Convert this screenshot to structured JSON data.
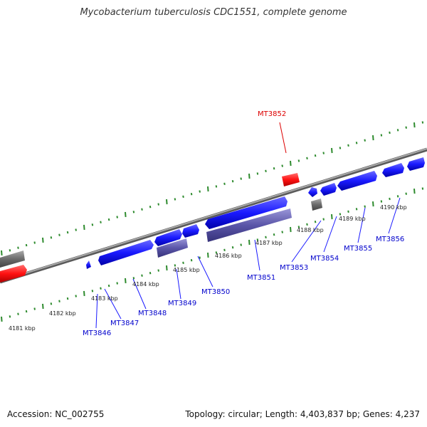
{
  "title": "Mycobacterium tuberculosis CDC1551, complete genome",
  "footer": {
    "accession": "Accession: NC_002755",
    "summary": "Topology: circular; Length: 4,403,837 bp; Genes: 4,237"
  },
  "colors": {
    "forward_gene": "#1a1aff",
    "reverse_gene": "#5a55a8",
    "highlight_gene": "#ff1111",
    "other_gene": "#6b6b6b",
    "backbone": "#808080",
    "ticks": "#2e8b2e",
    "gene_label": "#0000cc",
    "highlight_label": "#dd0000"
  },
  "kbp_labels": [
    "4181 kbp",
    "4182 kbp",
    "4183 kbp",
    "4184 kbp",
    "4185 kbp",
    "4186 kbp",
    "4187 kbp",
    "4188 kbp",
    "4189 kbp",
    "4190 kbp"
  ],
  "gene_labels": [
    "MT3846",
    "MT3847",
    "MT3848",
    "MT3849",
    "MT3850",
    "MT3851",
    "MT3853",
    "MT3854",
    "MT3855",
    "MT3856"
  ],
  "highlight_label": "MT3852"
}
